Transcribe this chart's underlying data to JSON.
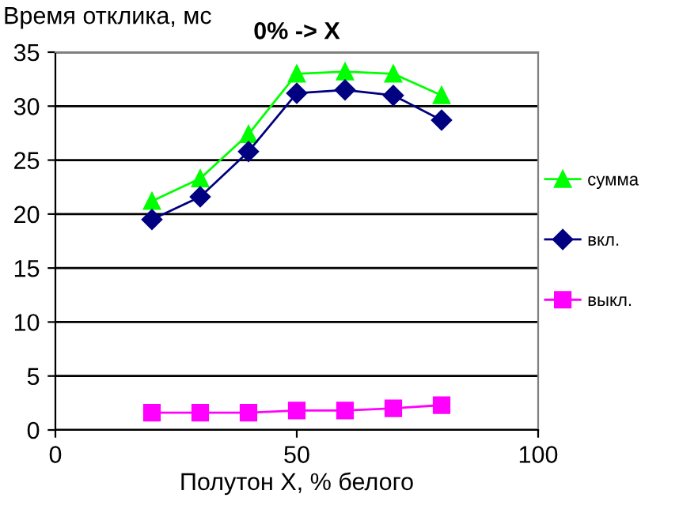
{
  "chart_data": {
    "type": "line",
    "title": "0% -> X",
    "ylabel": "Время отклика, мс",
    "xlabel": "Полутон X, % белого",
    "x": [
      20,
      30,
      40,
      50,
      60,
      70,
      80
    ],
    "series": [
      {
        "name": "сумма",
        "color": "#00ff00",
        "marker": "triangle",
        "values": [
          21.2,
          23.3,
          27.4,
          33.0,
          33.2,
          33.0,
          31.0
        ]
      },
      {
        "name": "вкл.",
        "color": "#000080",
        "marker": "diamond",
        "values": [
          19.5,
          21.6,
          25.8,
          31.2,
          31.5,
          31.0,
          28.7
        ]
      },
      {
        "name": "выкл.",
        "color": "#ff00ff",
        "marker": "square",
        "values": [
          1.6,
          1.6,
          1.6,
          1.8,
          1.8,
          2.0,
          2.3
        ]
      }
    ],
    "xlim": [
      0,
      100
    ],
    "xticks": [
      0,
      50,
      100
    ],
    "ylim": [
      0,
      35
    ],
    "yticks": [
      0,
      5,
      10,
      15,
      20,
      25,
      30,
      35
    ],
    "grid": "y",
    "legend": "right",
    "line_style": "solid"
  }
}
